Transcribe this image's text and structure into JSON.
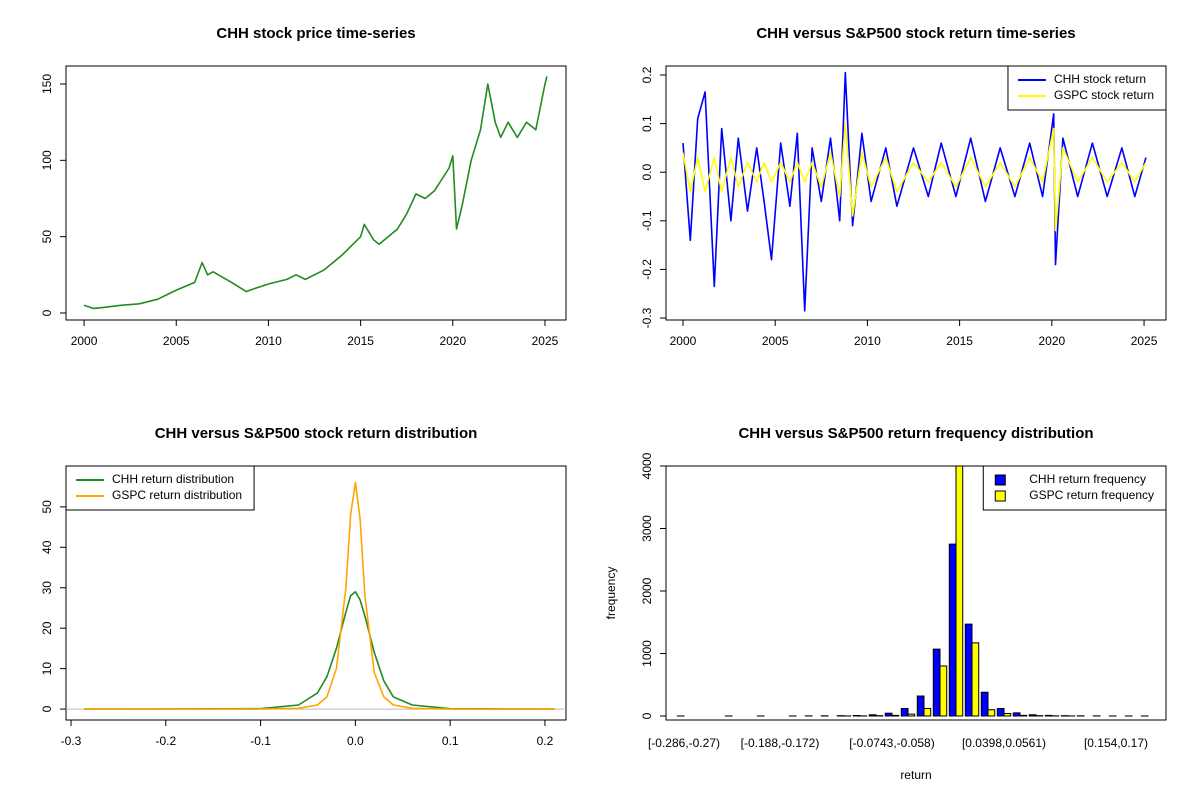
{
  "chart_data": [
    {
      "type": "line",
      "title": "CHH stock price time-series",
      "x": [
        2000,
        2000.5,
        2001,
        2002,
        2003,
        2004,
        2005,
        2006,
        2006.4,
        2006.7,
        2007,
        2008,
        2008.8,
        2009,
        2010,
        2011,
        2011.5,
        2012,
        2013,
        2014,
        2015,
        2015.2,
        2015.7,
        2016,
        2017,
        2017.5,
        2018,
        2018.5,
        2019,
        2019.8,
        2020,
        2020.2,
        2020.5,
        2021,
        2021.5,
        2021.9,
        2022.3,
        2022.6,
        2023,
        2023.5,
        2024,
        2024.5,
        2025,
        2025.1
      ],
      "values": [
        5,
        3,
        3.5,
        5,
        6,
        9,
        15,
        20,
        33,
        25,
        27,
        20,
        14,
        15,
        19,
        22,
        25,
        22,
        28,
        38,
        50,
        58,
        48,
        45,
        55,
        65,
        78,
        75,
        80,
        95,
        103,
        55,
        70,
        100,
        120,
        150,
        125,
        115,
        125,
        115,
        125,
        120,
        150,
        155
      ],
      "color": "#228b22",
      "xlim": [
        1999.02,
        2026.14
      ],
      "xticks": [
        2000,
        2005,
        2010,
        2015,
        2020,
        2025
      ],
      "ylim": [
        -4.6,
        161.8
      ],
      "yticks": [
        0,
        50,
        100,
        150
      ]
    },
    {
      "type": "line",
      "title": "CHH versus S&P500 stock return time-series",
      "x": [
        2000,
        2000.4,
        2000.8,
        2001.2,
        2001.7,
        2002.1,
        2002.6,
        2003,
        2003.5,
        2004,
        2004.4,
        2004.8,
        2005.3,
        2005.8,
        2006.2,
        2006.6,
        2007,
        2007.5,
        2008,
        2008.5,
        2008.8,
        2009.2,
        2009.7,
        2010.2,
        2011,
        2011.6,
        2012.5,
        2013.3,
        2014,
        2014.8,
        2015.6,
        2016.4,
        2017.2,
        2018,
        2018.8,
        2019.5,
        2020.1,
        2020.2,
        2020.6,
        2021.4,
        2022.2,
        2023,
        2023.8,
        2024.5,
        2025.1
      ],
      "series": [
        {
          "name": "CHH stock return",
          "color": "#0000ff",
          "values": [
            0.06,
            -0.14,
            0.11,
            0.165,
            -0.235,
            0.09,
            -0.1,
            0.07,
            -0.08,
            0.05,
            -0.06,
            -0.18,
            0.06,
            -0.07,
            0.08,
            -0.285,
            0.05,
            -0.06,
            0.07,
            -0.1,
            0.205,
            -0.11,
            0.08,
            -0.06,
            0.05,
            -0.07,
            0.05,
            -0.05,
            0.06,
            -0.05,
            0.07,
            -0.06,
            0.05,
            -0.05,
            0.06,
            -0.05,
            0.12,
            -0.19,
            0.07,
            -0.05,
            0.06,
            -0.05,
            0.05,
            -0.05,
            0.03
          ]
        },
        {
          "name": "GSPC stock return",
          "color": "#ffff00",
          "values": [
            0.04,
            -0.04,
            0.03,
            -0.04,
            0.03,
            -0.04,
            0.03,
            -0.03,
            0.02,
            -0.02,
            0.02,
            -0.02,
            0.02,
            -0.02,
            0.02,
            -0.02,
            0.02,
            -0.03,
            0.04,
            -0.05,
            0.1,
            -0.09,
            0.04,
            -0.03,
            0.03,
            -0.04,
            0.02,
            -0.02,
            0.02,
            -0.03,
            0.03,
            -0.03,
            0.02,
            -0.03,
            0.03,
            -0.02,
            0.09,
            -0.12,
            0.05,
            -0.02,
            0.03,
            -0.02,
            0.02,
            -0.02,
            0.02
          ]
        }
      ],
      "legend": "top-right",
      "xlim": [
        1999.08,
        2026.19
      ],
      "xticks": [
        2000,
        2005,
        2010,
        2015,
        2020,
        2025
      ],
      "ylim": [
        -0.304,
        0.2185
      ],
      "yticks": [
        -0.3,
        -0.2,
        -0.1,
        {
          "value": 0,
          "label": "0.0"
        },
        0.1,
        0.2
      ]
    },
    {
      "type": "line",
      "title": "CHH versus S&P500 stock return distribution",
      "x": [
        -0.286,
        -0.1,
        -0.06,
        -0.04,
        -0.03,
        -0.02,
        -0.01,
        -0.005,
        0,
        0.005,
        0.01,
        0.02,
        0.03,
        0.04,
        0.06,
        0.1,
        0.21
      ],
      "series": [
        {
          "name": "CHH return distribution",
          "color": "#228b22",
          "values": [
            0,
            0.1,
            1,
            4,
            8,
            15,
            24,
            28,
            29,
            27,
            23,
            14,
            7,
            3,
            1,
            0.1,
            0
          ]
        },
        {
          "name": "GSPC return distribution",
          "color": "#ffa500",
          "values": [
            0,
            0,
            0.2,
            1,
            3,
            10,
            30,
            48,
            56,
            47,
            28,
            9,
            3,
            1,
            0.2,
            0,
            0
          ]
        }
      ],
      "legend": "top-left",
      "xlim": [
        -0.3053,
        0.2222
      ],
      "xticks": [
        -0.3,
        -0.2,
        -0.1,
        {
          "value": 0,
          "label": "0.0"
        },
        0.1,
        0.2
      ],
      "ylim": [
        -2.7,
        60.1
      ],
      "yticks": [
        0,
        10,
        20,
        30,
        40,
        50
      ]
    },
    {
      "type": "bar",
      "title": "CHH versus S&P500 return frequency distribution",
      "categories": [
        "[-0.286,-0.27)",
        null,
        null,
        null,
        null,
        null,
        "[-0.188,-0.172)",
        null,
        null,
        null,
        null,
        null,
        null,
        "[-0.0743,-0.058)",
        null,
        null,
        null,
        null,
        null,
        null,
        "[0.0398,0.0561)",
        null,
        null,
        null,
        null,
        null,
        null,
        "[0.154,0.17)",
        null,
        null
      ],
      "series": [
        {
          "name": "CHH return frequency",
          "color": "#0000ff",
          "values": [
            1,
            0,
            0,
            1,
            0,
            1,
            0,
            1,
            2,
            3,
            5,
            8,
            20,
            45,
            120,
            320,
            1070,
            2750,
            1470,
            380,
            120,
            50,
            20,
            10,
            5,
            3,
            2,
            1,
            1,
            1
          ]
        },
        {
          "name": "GSPC return frequency",
          "color": "#ffff00",
          "values": [
            0,
            0,
            0,
            0,
            0,
            0,
            0,
            0,
            0,
            0,
            1,
            2,
            5,
            10,
            30,
            120,
            800,
            4000,
            1170,
            100,
            40,
            10,
            5,
            2,
            1,
            0,
            0,
            0,
            0,
            0
          ]
        }
      ],
      "legend": "top-right",
      "xlabel": "return",
      "ylabel": "frequency",
      "ylim": [
        -64,
        4000
      ],
      "yticks": [
        0,
        1000,
        2000,
        3000,
        4000
      ]
    }
  ]
}
